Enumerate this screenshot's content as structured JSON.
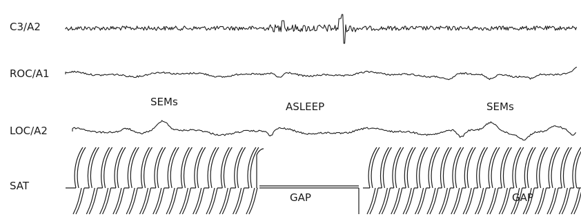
{
  "chart_data": {
    "type": "line",
    "title": "",
    "xlabel": "",
    "ylabel": "",
    "grid": false,
    "legend": "none",
    "series": [
      {
        "name": "C3/A2",
        "kind": "EEG"
      },
      {
        "name": "ROC/A1",
        "kind": "EOG"
      },
      {
        "name": "LOC/A2",
        "kind": "EOG"
      },
      {
        "name": "SAT",
        "kind": "oximetry"
      }
    ],
    "annotations": [
      {
        "text": "SEMs",
        "position": "between ROC/A1 and LOC/A2, left"
      },
      {
        "text": "ASLEEP",
        "position": "between ROC/A1 and LOC/A2, center"
      },
      {
        "text": "SEMs",
        "position": "between ROC/A1 and LOC/A2, right"
      },
      {
        "text": "GAP",
        "position": "SAT trace, center"
      },
      {
        "text": "GAP",
        "position": "SAT trace, right"
      }
    ],
    "colors": {
      "trace": "#1a1a1a",
      "background": "#ffffff"
    }
  }
}
